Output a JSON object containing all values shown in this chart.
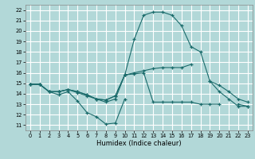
{
  "title": "",
  "xlabel": "Humidex (Indice chaleur)",
  "background_color": "#b2d8d8",
  "grid_color": "#ffffff",
  "line_color": "#1a6b6b",
  "xlim": [
    -0.5,
    23.5
  ],
  "ylim": [
    10.5,
    22.5
  ],
  "xticks": [
    0,
    1,
    2,
    3,
    4,
    5,
    6,
    7,
    8,
    9,
    10,
    11,
    12,
    13,
    14,
    15,
    16,
    17,
    18,
    19,
    20,
    21,
    22,
    23
  ],
  "yticks": [
    11,
    12,
    13,
    14,
    15,
    16,
    17,
    18,
    19,
    20,
    21,
    22
  ],
  "line1_y": [
    14.9,
    14.9,
    14.2,
    13.9,
    14.2,
    13.3,
    12.2,
    11.8,
    11.1,
    11.2,
    13.5,
    null,
    null,
    null,
    null,
    null,
    null,
    null,
    null,
    null,
    null,
    null,
    null,
    null
  ],
  "line2_y": [
    14.9,
    14.9,
    14.2,
    14.2,
    14.4,
    14.1,
    13.8,
    13.5,
    13.2,
    13.5,
    15.8,
    19.2,
    21.5,
    21.8,
    21.8,
    21.5,
    20.5,
    18.5,
    18.0,
    15.2,
    14.2,
    13.5,
    12.8,
    12.8
  ],
  "line3_y": [
    14.9,
    14.9,
    14.2,
    14.2,
    14.4,
    14.2,
    13.9,
    13.5,
    13.4,
    13.8,
    15.8,
    16.0,
    16.2,
    16.4,
    16.5,
    16.5,
    16.5,
    16.8,
    null,
    15.2,
    14.8,
    14.2,
    13.5,
    13.2
  ],
  "line4_y": [
    14.9,
    14.9,
    14.2,
    14.2,
    14.4,
    14.2,
    13.9,
    13.5,
    13.4,
    13.8,
    15.8,
    15.9,
    16.0,
    13.2,
    13.2,
    13.2,
    13.2,
    13.2,
    13.0,
    13.0,
    13.0,
    null,
    13.0,
    12.8
  ]
}
